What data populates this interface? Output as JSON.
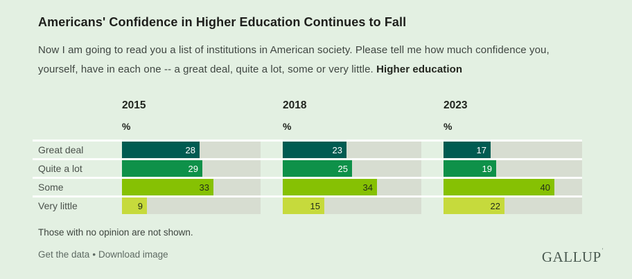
{
  "header": {
    "title": "Americans' Confidence in Higher Education Continues to Fall",
    "subtitle_line1": "Now I am going to read you a list of institutions in American society. Please tell me how much confidence you,",
    "subtitle_line2": "yourself, have in each one -- a great deal, quite a lot, some or very little.",
    "subtitle_bold": "Higher education"
  },
  "chart_data": {
    "type": "bar",
    "orientation": "horizontal",
    "title": "Americans' Confidence in Higher Education Continues to Fall",
    "unit_label": "%",
    "xlim": [
      0,
      50
    ],
    "grid": false,
    "categories": [
      "Great deal",
      "Quite a lot",
      "Some",
      "Very little"
    ],
    "series": [
      {
        "name": "2015",
        "values": [
          28,
          29,
          33,
          9
        ]
      },
      {
        "name": "2018",
        "values": [
          23,
          25,
          34,
          15
        ]
      },
      {
        "name": "2023",
        "values": [
          17,
          19,
          40,
          22
        ]
      }
    ],
    "category_colors": [
      "#005b51",
      "#0e9149",
      "#86c103",
      "#c6da3c"
    ],
    "track_color": "#d7ddd1",
    "background_color": "#e3f0e2"
  },
  "footer": {
    "note": "Those with no opinion are not shown.",
    "link_get_data": "Get the data",
    "separator": "•",
    "link_download": "Download image",
    "logo": "GALLUP",
    "logo_mark": "′"
  }
}
